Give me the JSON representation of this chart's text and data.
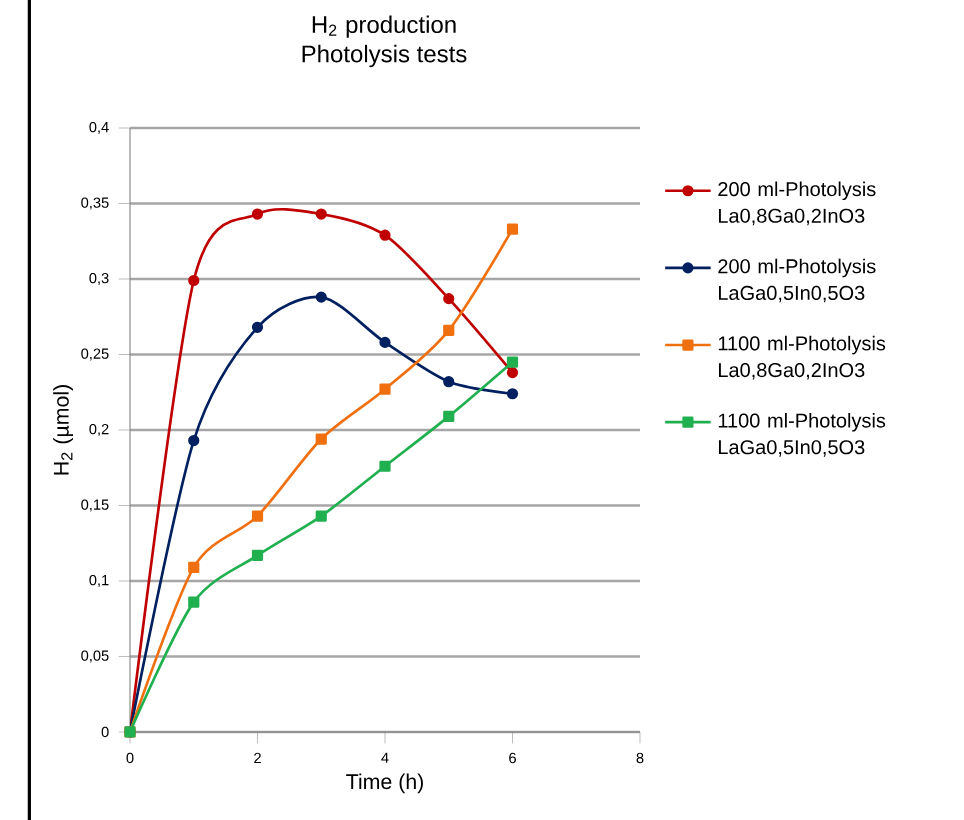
{
  "chart_data": {
    "type": "line",
    "title": "H$_{2}$ production",
    "subtitle": "Photolysis tests",
    "xlabel": "Time (h)",
    "ylabel": "H$_{2}$ (µmol)",
    "x": [
      0,
      1,
      2,
      3,
      4,
      5,
      6
    ],
    "series": [
      {
        "name": "200 ml-Photolysis La0,8Ga0,2InO3",
        "color": "#c00000",
        "marker": "circle",
        "values": [
          0,
          0.299,
          0.343,
          0.343,
          0.329,
          0.287,
          0.238
        ]
      },
      {
        "name": "200 ml-Photolysis LaGa0,5In0,5O3",
        "color": "#002060",
        "marker": "circle",
        "values": [
          0,
          0.193,
          0.268,
          0.288,
          0.258,
          0.232,
          0.224
        ]
      },
      {
        "name": "1100 ml-Photolysis La0,8Ga0,2InO3",
        "color": "#f07010",
        "marker": "square",
        "values": [
          0,
          0.109,
          0.143,
          0.194,
          0.227,
          0.266,
          0.333
        ]
      },
      {
        "name": "1100 ml-Photolysis LaGa0,5In0,5O3",
        "color": "#20b050",
        "marker": "square",
        "values": [
          0,
          0.086,
          0.117,
          0.143,
          0.176,
          0.209,
          0.245
        ]
      }
    ],
    "xlim": [
      0,
      8
    ],
    "xticks": [
      0,
      2,
      4,
      6,
      8
    ],
    "ylim": [
      0,
      0.4
    ],
    "yticks": [
      0,
      {
        "value": 0.05,
        "label": "0,05"
      },
      {
        "value": 0.1,
        "label": "0,1"
      },
      {
        "value": 0.15,
        "label": "0,15"
      },
      {
        "value": 0.2,
        "label": "0,2"
      },
      {
        "value": 0.25,
        "label": "0,25"
      },
      {
        "value": 0.3,
        "label": "0,3"
      },
      {
        "value": 0.35,
        "label": "0,35"
      },
      {
        "value": 0.4,
        "label": "0,4"
      }
    ],
    "grid": "y",
    "legend": "right",
    "line_style": "solid"
  }
}
